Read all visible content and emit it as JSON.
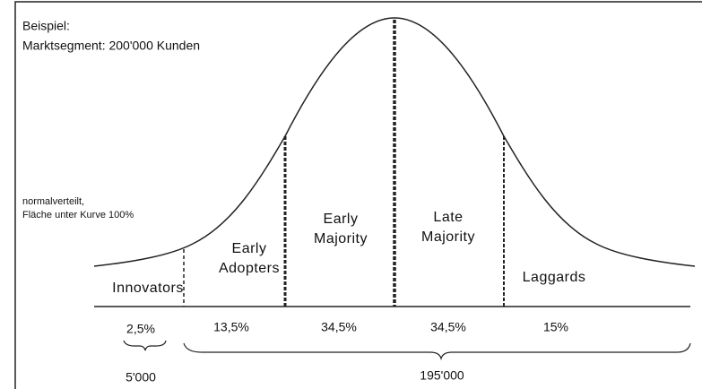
{
  "header": {
    "title": "Beispiel:",
    "subtitle": "Marktsegment: 200'000 Kunden"
  },
  "note": [
    "normalverteilt,",
    "Fläche unter Kurve 100%"
  ],
  "segments": [
    {
      "label": [
        "Innovators"
      ],
      "share": "2,5%"
    },
    {
      "label": [
        "Early",
        "Adopters"
      ],
      "share": "13,5%"
    },
    {
      "label": [
        "Early",
        "Majority"
      ],
      "share": "34,5%"
    },
    {
      "label": [
        "Late",
        "Majority"
      ],
      "share": "34,5%"
    },
    {
      "label": [
        "Laggards"
      ],
      "share": "15%"
    }
  ],
  "totals": [
    "5'000",
    "195'000"
  ]
}
